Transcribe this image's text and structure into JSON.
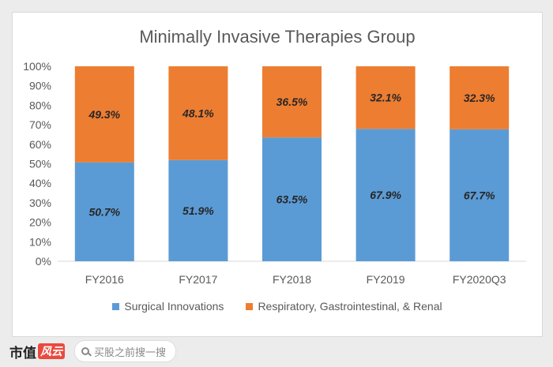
{
  "chart_data": {
    "type": "bar",
    "stacked": true,
    "title": "Minimally Invasive Therapies Group",
    "categories": [
      "FY2016",
      "FY2017",
      "FY2018",
      "FY2019",
      "FY2020Q3"
    ],
    "series": [
      {
        "name": "Surgical Innovations",
        "color": "#5b9bd5",
        "values": [
          50.7,
          51.9,
          63.5,
          67.9,
          67.7
        ],
        "labels": [
          "50.7%",
          "51.9%",
          "63.5%",
          "67.9%",
          "67.7%"
        ]
      },
      {
        "name": "Respiratory, Gastrointestinal, & Renal",
        "color": "#ed7d31",
        "values": [
          49.3,
          48.1,
          36.5,
          32.1,
          32.3
        ],
        "labels": [
          "49.3%",
          "48.1%",
          "36.5%",
          "32.1%",
          "32.3%"
        ]
      }
    ],
    "ylim": [
      0,
      100
    ],
    "yticks": [
      "0%",
      "10%",
      "20%",
      "30%",
      "40%",
      "50%",
      "60%",
      "70%",
      "80%",
      "90%",
      "100%"
    ],
    "legend_position": "bottom",
    "grid": false
  },
  "footer": {
    "brand": "市值",
    "brand_mark": "风云",
    "search_placeholder": "买股之前搜一搜",
    "search_icon": "search-icon"
  }
}
